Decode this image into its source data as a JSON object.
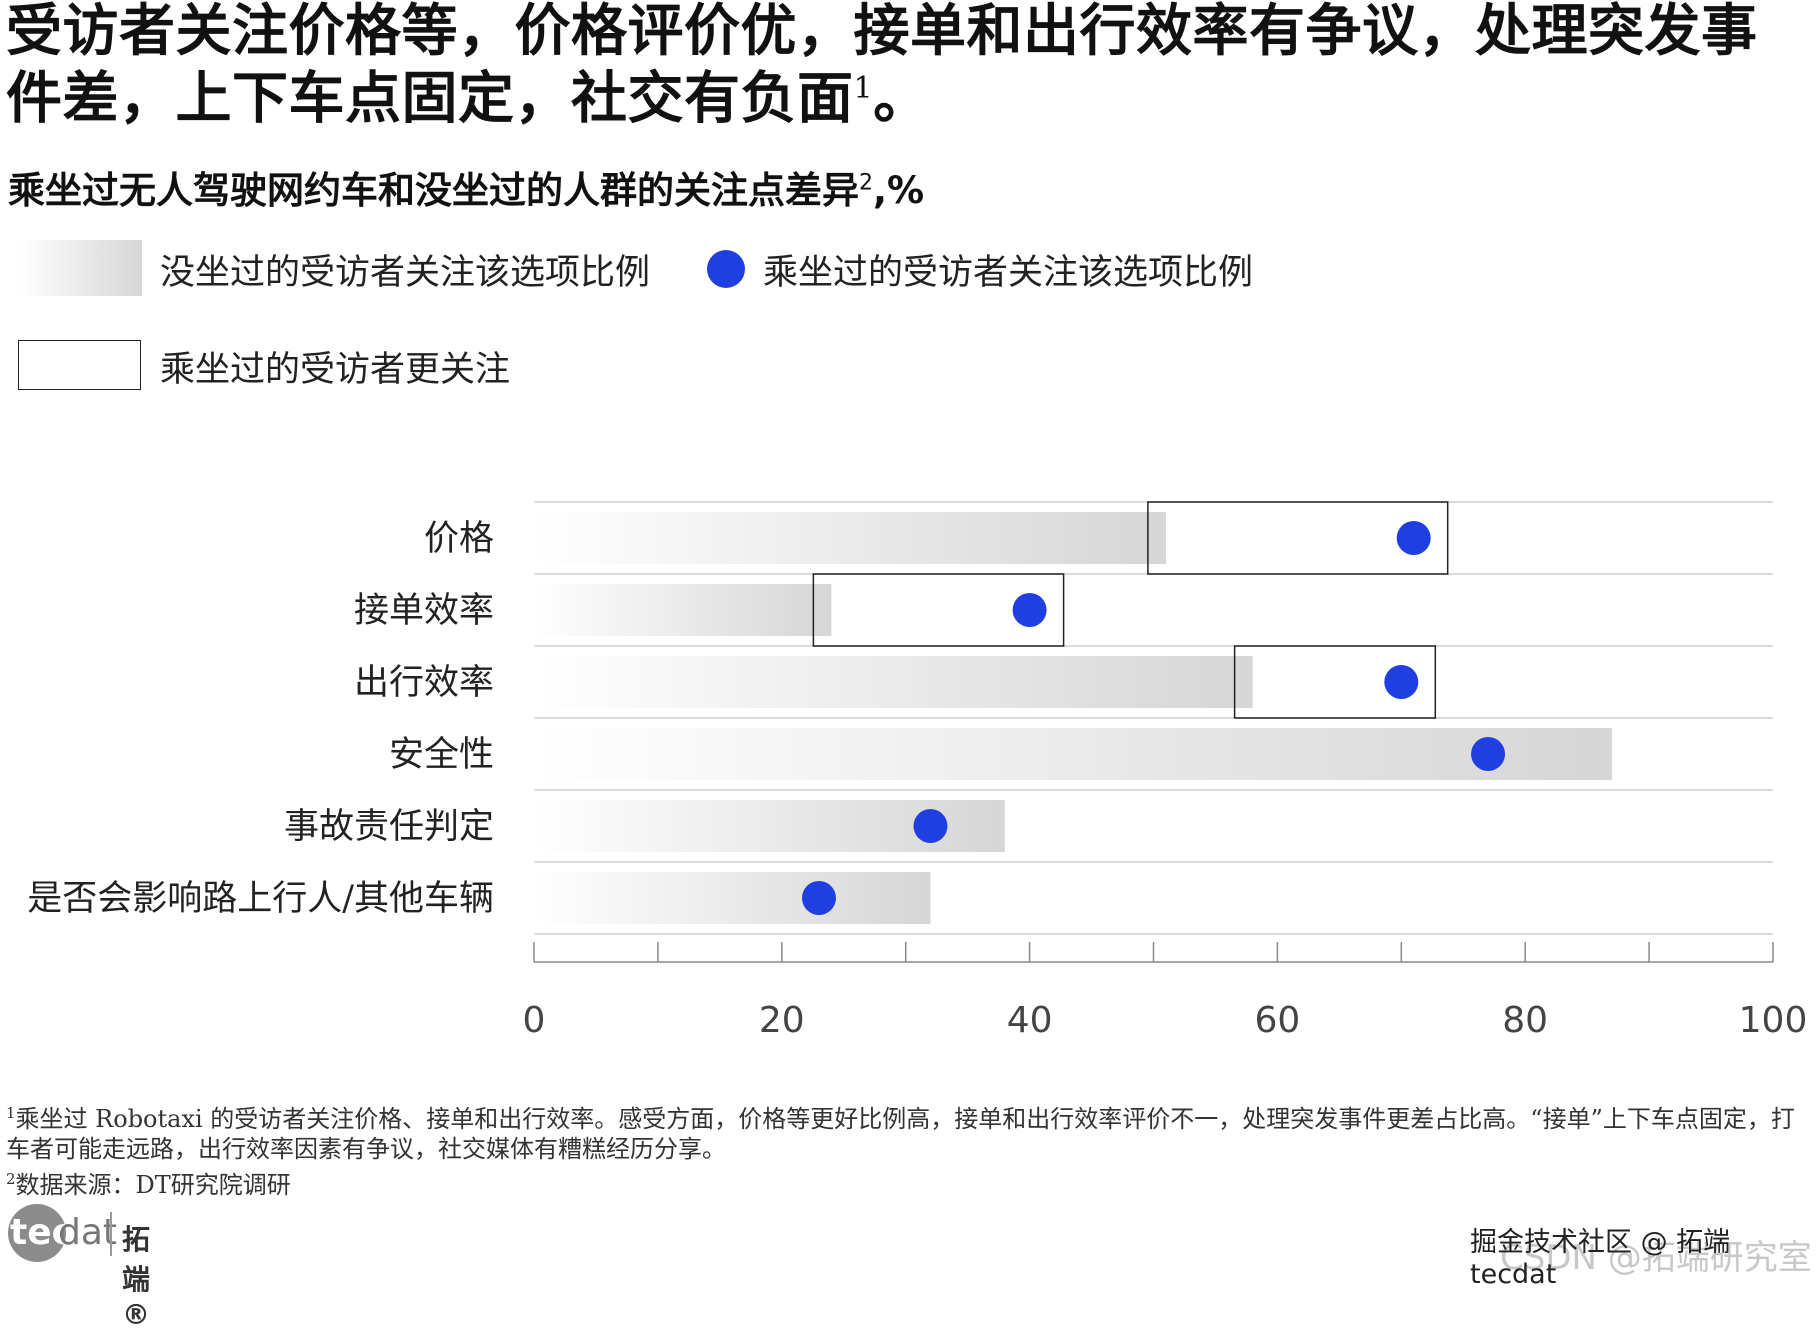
{
  "title_parts": {
    "main": "受访者关注价格等，价格评价优，接单和出行效率有争议，处理突发事件差，上下车点固定，社交有负面",
    "sup": "1",
    "end": "。"
  },
  "subtitle_parts": {
    "main": "乘坐过无人驾驶网约车和没坐过的人群的关注点差异",
    "sup": "2",
    "end": ",%"
  },
  "legend": {
    "bar_label": "没坐过的受访者关注该选项比例",
    "dot_label": "乘坐过的受访者关注该选项比例",
    "box_label": "乘坐过的受访者更关注"
  },
  "colors": {
    "dot": "#1f3fe0",
    "bar_start": "#ffffff",
    "bar_end": "#d6d6d6",
    "grid": "#cfcfcf"
  },
  "chart_data": {
    "type": "bar",
    "categories": [
      "价格",
      "接单效率",
      "出行效率",
      "安全性",
      "事故责任判定",
      "是否会影响路上行人/其他车辆"
    ],
    "series": [
      {
        "name": "没坐过的受访者关注该选项比例",
        "values": [
          51,
          24,
          58,
          87,
          38,
          32
        ]
      },
      {
        "name": "乘坐过的受访者关注该选项比例",
        "values": [
          71,
          40,
          70,
          77,
          32,
          23
        ]
      }
    ],
    "highlighted": [
      "价格",
      "接单效率",
      "出行效率"
    ],
    "xlim": [
      0,
      100
    ],
    "xticks": [
      "0",
      "20",
      "40",
      "60",
      "80",
      "100"
    ],
    "grid": true
  },
  "footnotes": {
    "note1_sup": "1",
    "note1": "乘坐过 Robotaxi 的受访者关注价格、接单和出行效率。感受方面，价格等更好比例高，接单和出行效率评价不一，处理突发事件更差占比高。“接单”上下车点固定，打车者可能走远路，出行效率因素有争议，社交媒体有糟糕经历分享。",
    "note2_sup": "2",
    "note2": "数据来源：DT研究院调研"
  },
  "logo": {
    "tec": "tec",
    "dat": "dat",
    "cn": "拓端®"
  },
  "watermark": {
    "text1": "掘金技术社区 @ 拓端tecdat",
    "text2": "CSDN @拓端研究室"
  }
}
